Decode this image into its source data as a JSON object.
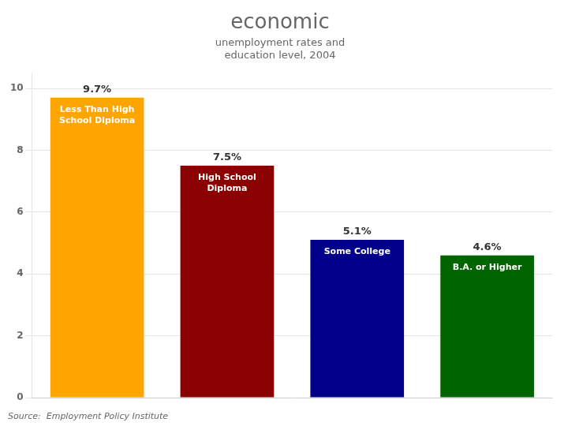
{
  "chart_data": {
    "type": "bar",
    "title": "economic",
    "subtitle": "unemployment rates and\neducation level, 2004",
    "annotation": "Source:  Employment Policy Institute",
    "categories": [
      "Less Than High\nSchool Diploma",
      "High School\nDiploma",
      "Some College",
      "B.A. or Higher"
    ],
    "values": [
      9.7,
      7.5,
      5.1,
      4.6
    ],
    "value_labels": [
      "9.7%",
      "7.5%",
      "5.1%",
      "4.6%"
    ],
    "data_labels": true,
    "colors": [
      "#FFA500",
      "#8B0000",
      "#00008B",
      "#006400"
    ],
    "ylim": [
      0,
      10.5
    ],
    "yticks": [
      0,
      2,
      4,
      6,
      8,
      10
    ],
    "grid": true,
    "tick_labels": "y"
  }
}
